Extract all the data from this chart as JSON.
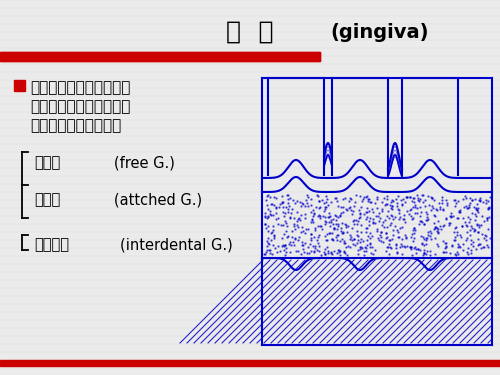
{
  "title_cn": "牙  龈",
  "title_en": "(gingiva)",
  "bg_color": "#ebebeb",
  "red_bar_color": "#cc0000",
  "blue_color": "#0000cc",
  "black_color": "#000000",
  "bullet_color": "#cc0000",
  "line1_text": "牙龈是覆盖在牙颈部和牙",
  "line2_text": "槽嵴的口腔粘膜，呈浅粉",
  "line3_text": "红色，坚韧而不活动。",
  "item1_cn": "游离龈",
  "item1_en": "   (free G.)",
  "item2_cn": "附着龈",
  "item2_en": "   (attched G.)",
  "item3_cn": "牙间乳头",
  "item3_en": "(interdental G.)",
  "body_fontsize": 11,
  "sub_fontsize": 10.5,
  "title_fontsize": 18,
  "bottom_line_color": "#cc0000"
}
